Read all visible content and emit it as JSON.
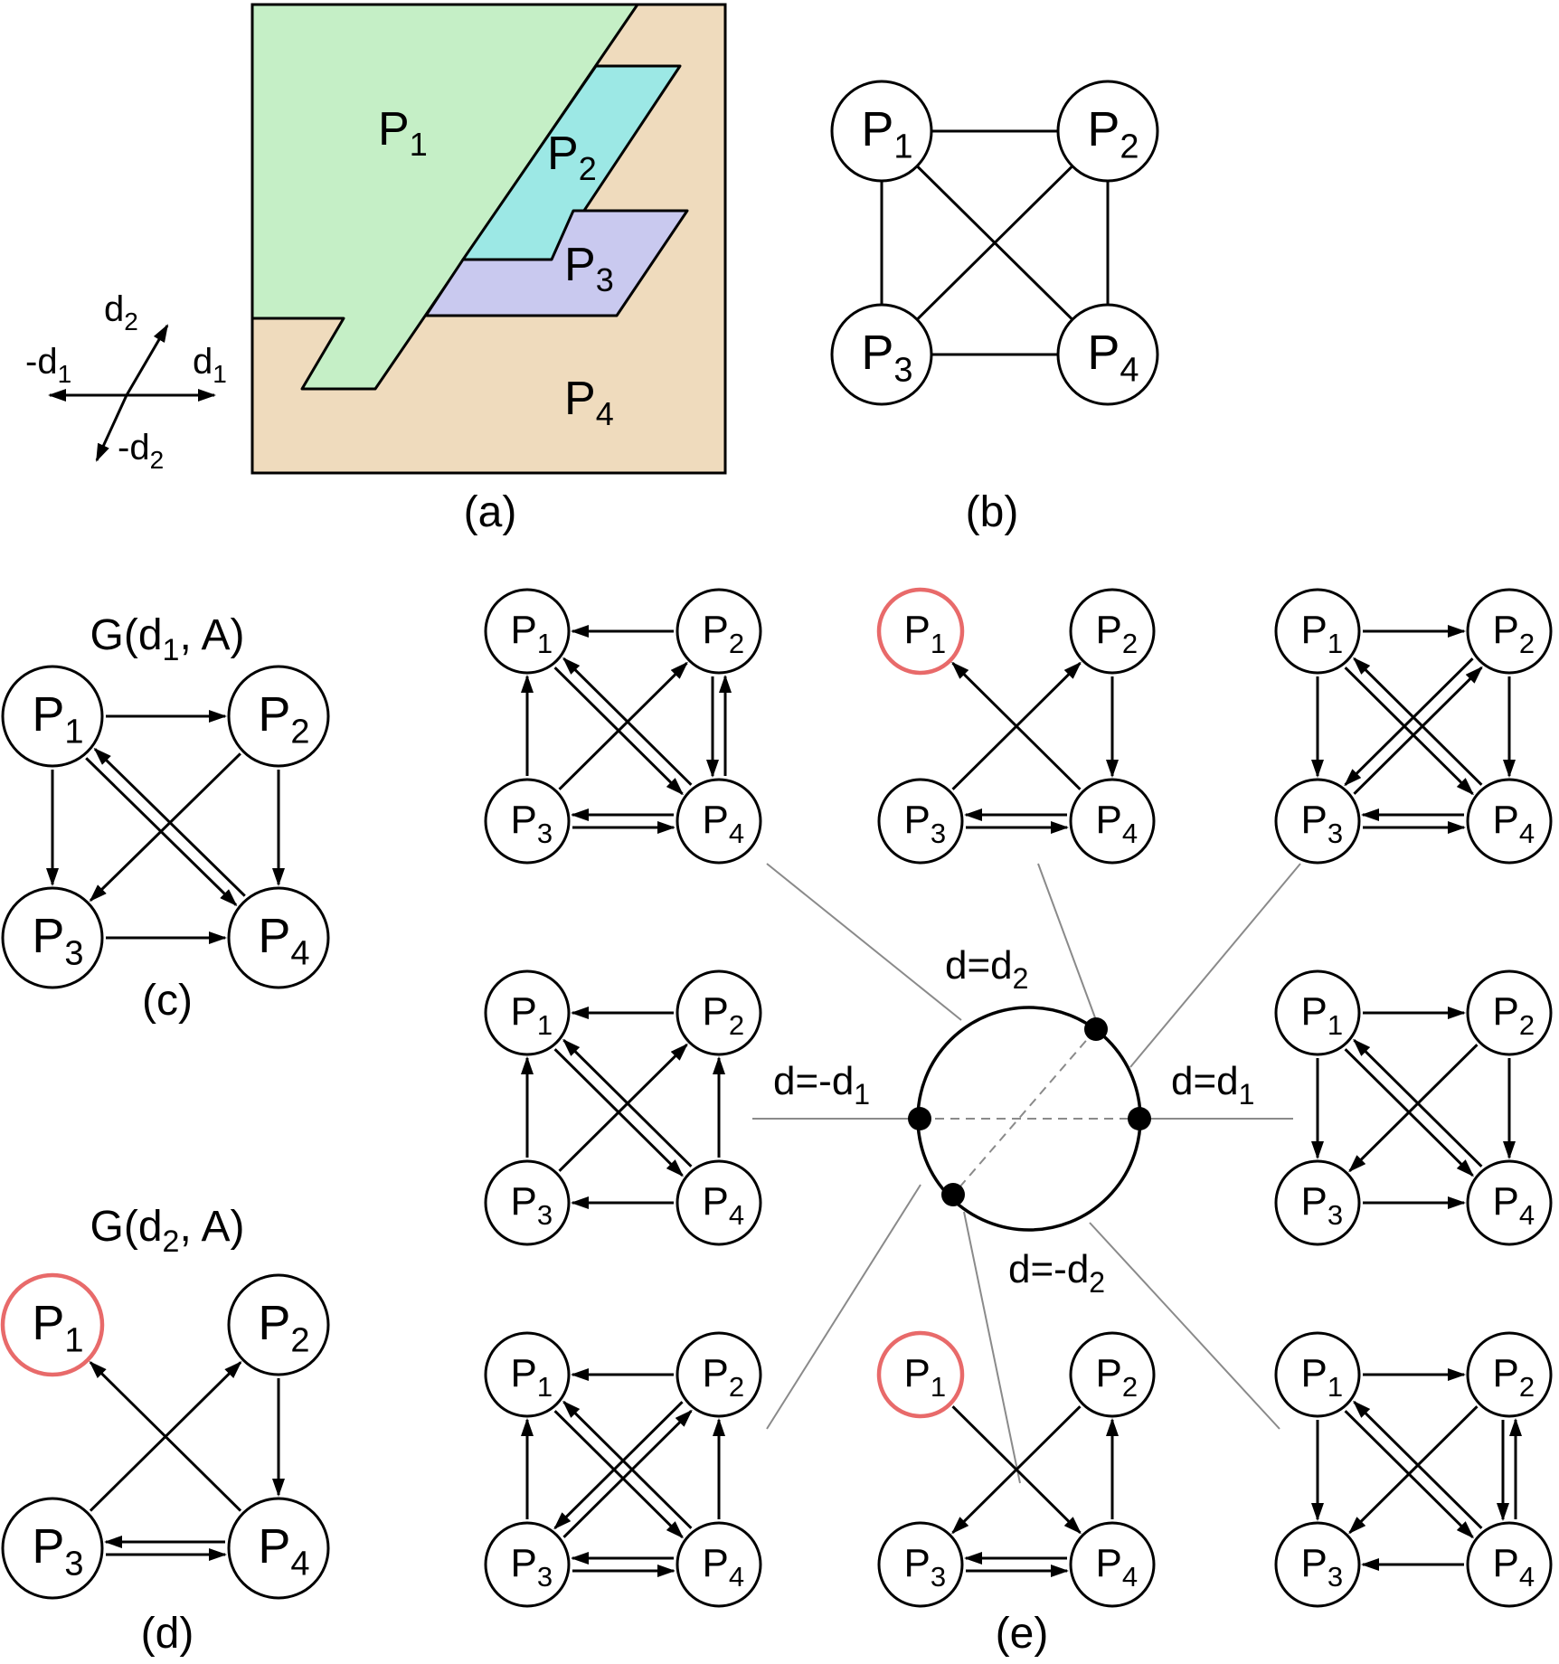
{
  "node_labels": {
    "P1": {
      "base": "P",
      "sub": "1"
    },
    "P2": {
      "base": "P",
      "sub": "2"
    },
    "P3": {
      "base": "P",
      "sub": "3"
    },
    "P4": {
      "base": "P",
      "sub": "4"
    }
  },
  "axes_legend": {
    "pos_d1": {
      "base": "d",
      "sub": "1"
    },
    "neg_d1": {
      "base": "-d",
      "sub": "1"
    },
    "pos_d2": {
      "base": "d",
      "sub": "2"
    },
    "neg_d2": {
      "base": "-d",
      "sub": "2"
    }
  },
  "captions": {
    "a": "(a)",
    "b": "(b)",
    "c": "(c)",
    "d": "(d)",
    "e": "(e)"
  },
  "graph_titles": {
    "c": {
      "pre": "G(d",
      "sub": "1",
      "post": ", A)"
    },
    "d": {
      "pre": "G(d",
      "sub": "2",
      "post": ", A)"
    }
  },
  "direction_labels": {
    "top": {
      "base": "d=d",
      "sub": "2"
    },
    "right": {
      "base": "d=d",
      "sub": "1"
    },
    "left": {
      "base": "d=-d",
      "sub": "1"
    },
    "bottom": {
      "base": "d=-d",
      "sub": "2"
    }
  },
  "region_colors": {
    "P1": "#c5efc6",
    "P2": "#9ce8e5",
    "P3": "#c9c9ef",
    "P4": "#efdbbd"
  },
  "highlight_color": "#e86a6a",
  "graph_b_edges": [
    [
      "P1",
      "P2"
    ],
    [
      "P1",
      "P3"
    ],
    [
      "P1",
      "P4"
    ],
    [
      "P2",
      "P3"
    ],
    [
      "P2",
      "P4"
    ],
    [
      "P3",
      "P4"
    ]
  ],
  "graph_c": {
    "highlighted": [],
    "arrows": [
      [
        "P1",
        "P2"
      ],
      [
        "P1",
        "P3"
      ],
      [
        "P2",
        "P3"
      ],
      [
        "P2",
        "P4"
      ],
      [
        "P1",
        "P4"
      ],
      [
        "P4",
        "P1"
      ],
      [
        "P3",
        "P4"
      ]
    ]
  },
  "graph_d": {
    "highlighted": [
      "P1"
    ],
    "arrows": [
      [
        "P3",
        "P2"
      ],
      [
        "P4",
        "P1"
      ],
      [
        "P2",
        "P4"
      ],
      [
        "P4",
        "P3"
      ],
      [
        "P3",
        "P4"
      ]
    ]
  },
  "graph_e": [
    {
      "id": "e-top-left",
      "highlighted": [],
      "arrows": [
        [
          "P2",
          "P1"
        ],
        [
          "P3",
          "P1"
        ],
        [
          "P1",
          "P4"
        ],
        [
          "P4",
          "P1"
        ],
        [
          "P3",
          "P2"
        ],
        [
          "P2",
          "P4"
        ],
        [
          "P4",
          "P2"
        ],
        [
          "P4",
          "P3"
        ],
        [
          "P3",
          "P4"
        ]
      ]
    },
    {
      "id": "e-top-middle",
      "highlighted": [
        "P1"
      ],
      "arrows": [
        [
          "P3",
          "P2"
        ],
        [
          "P4",
          "P1"
        ],
        [
          "P2",
          "P4"
        ],
        [
          "P4",
          "P3"
        ],
        [
          "P3",
          "P4"
        ]
      ]
    },
    {
      "id": "e-top-right",
      "highlighted": [],
      "arrows": [
        [
          "P1",
          "P2"
        ],
        [
          "P1",
          "P3"
        ],
        [
          "P2",
          "P3"
        ],
        [
          "P3",
          "P2"
        ],
        [
          "P1",
          "P4"
        ],
        [
          "P4",
          "P1"
        ],
        [
          "P2",
          "P4"
        ],
        [
          "P4",
          "P3"
        ],
        [
          "P3",
          "P4"
        ]
      ]
    },
    {
      "id": "e-middle-left",
      "highlighted": [],
      "arrows": [
        [
          "P2",
          "P1"
        ],
        [
          "P3",
          "P1"
        ],
        [
          "P1",
          "P4"
        ],
        [
          "P4",
          "P1"
        ],
        [
          "P3",
          "P2"
        ],
        [
          "P4",
          "P2"
        ],
        [
          "P4",
          "P3"
        ]
      ]
    },
    {
      "id": "e-middle-right",
      "highlighted": [],
      "arrows": [
        [
          "P1",
          "P2"
        ],
        [
          "P1",
          "P3"
        ],
        [
          "P2",
          "P3"
        ],
        [
          "P1",
          "P4"
        ],
        [
          "P4",
          "P1"
        ],
        [
          "P2",
          "P4"
        ],
        [
          "P3",
          "P4"
        ]
      ]
    },
    {
      "id": "e-bottom-left",
      "highlighted": [],
      "arrows": [
        [
          "P2",
          "P1"
        ],
        [
          "P3",
          "P1"
        ],
        [
          "P1",
          "P4"
        ],
        [
          "P4",
          "P1"
        ],
        [
          "P2",
          "P3"
        ],
        [
          "P3",
          "P2"
        ],
        [
          "P4",
          "P2"
        ],
        [
          "P3",
          "P4"
        ],
        [
          "P4",
          "P3"
        ]
      ]
    },
    {
      "id": "e-bottom-middle",
      "highlighted": [
        "P1"
      ],
      "arrows": [
        [
          "P2",
          "P3"
        ],
        [
          "P1",
          "P4"
        ],
        [
          "P4",
          "P2"
        ],
        [
          "P3",
          "P4"
        ],
        [
          "P4",
          "P3"
        ]
      ]
    },
    {
      "id": "e-bottom-right",
      "highlighted": [],
      "arrows": [
        [
          "P1",
          "P2"
        ],
        [
          "P1",
          "P3"
        ],
        [
          "P2",
          "P3"
        ],
        [
          "P1",
          "P4"
        ],
        [
          "P4",
          "P1"
        ],
        [
          "P2",
          "P4"
        ],
        [
          "P4",
          "P2"
        ],
        [
          "P4",
          "P3"
        ]
      ]
    }
  ]
}
